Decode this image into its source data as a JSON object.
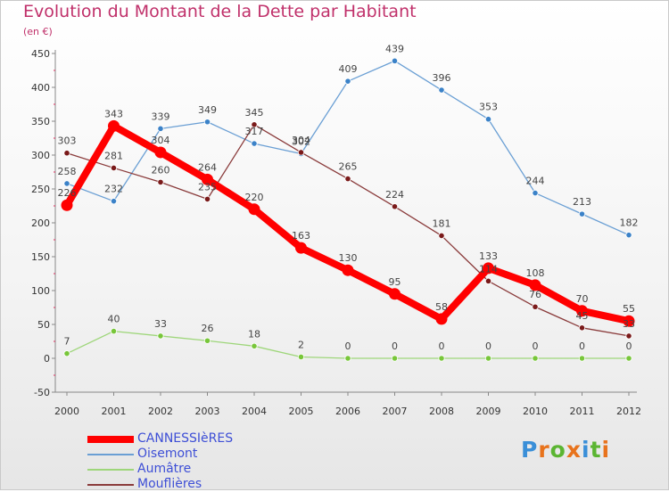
{
  "header": {
    "title": "Evolution du Montant de la Dette par Habitant",
    "subtitle": "(en €)"
  },
  "logo": {
    "text": "Proxiti",
    "letter_colors": [
      "#3a8fd8",
      "#e8731c",
      "#5bb532",
      "#e8731c",
      "#3a8fd8",
      "#5bb532",
      "#e8731c"
    ]
  },
  "chart_data": {
    "type": "line",
    "title": "Evolution du Montant de la Dette par Habitant",
    "ylabel": "(en €)",
    "xlabel": "",
    "x": [
      "2000",
      "2001",
      "2002",
      "2003",
      "2004",
      "2005",
      "2006",
      "2007",
      "2008",
      "2009",
      "2010",
      "2011",
      "2012"
    ],
    "ylim": [
      -50,
      450
    ],
    "yticks": [
      -50,
      0,
      50,
      100,
      150,
      200,
      250,
      300,
      350,
      400,
      450
    ],
    "grid": false,
    "legend_position": "bottom-left",
    "series": [
      {
        "name": "CANNESSIèRES",
        "color": "#ff0000",
        "emphasis": true,
        "values": [
          226,
          343,
          304,
          264,
          220,
          163,
          130,
          95,
          58,
          133,
          108,
          70,
          55
        ]
      },
      {
        "name": "Oisemont",
        "color": "#6a9fd4",
        "marker": "#3b82c8",
        "values": [
          258,
          232,
          339,
          349,
          317,
          302,
          409,
          439,
          396,
          353,
          244,
          213,
          182
        ]
      },
      {
        "name": "Aumâtre",
        "color": "#9ed67a",
        "marker": "#78c63a",
        "values": [
          7,
          40,
          33,
          26,
          18,
          2,
          0,
          0,
          0,
          0,
          0,
          0,
          0
        ]
      },
      {
        "name": "Mouflières",
        "color": "#8a3b3b",
        "marker": "#7a1a1a",
        "values": [
          303,
          281,
          260,
          235,
          345,
          304,
          265,
          224,
          181,
          114,
          76,
          45,
          33
        ]
      }
    ]
  }
}
